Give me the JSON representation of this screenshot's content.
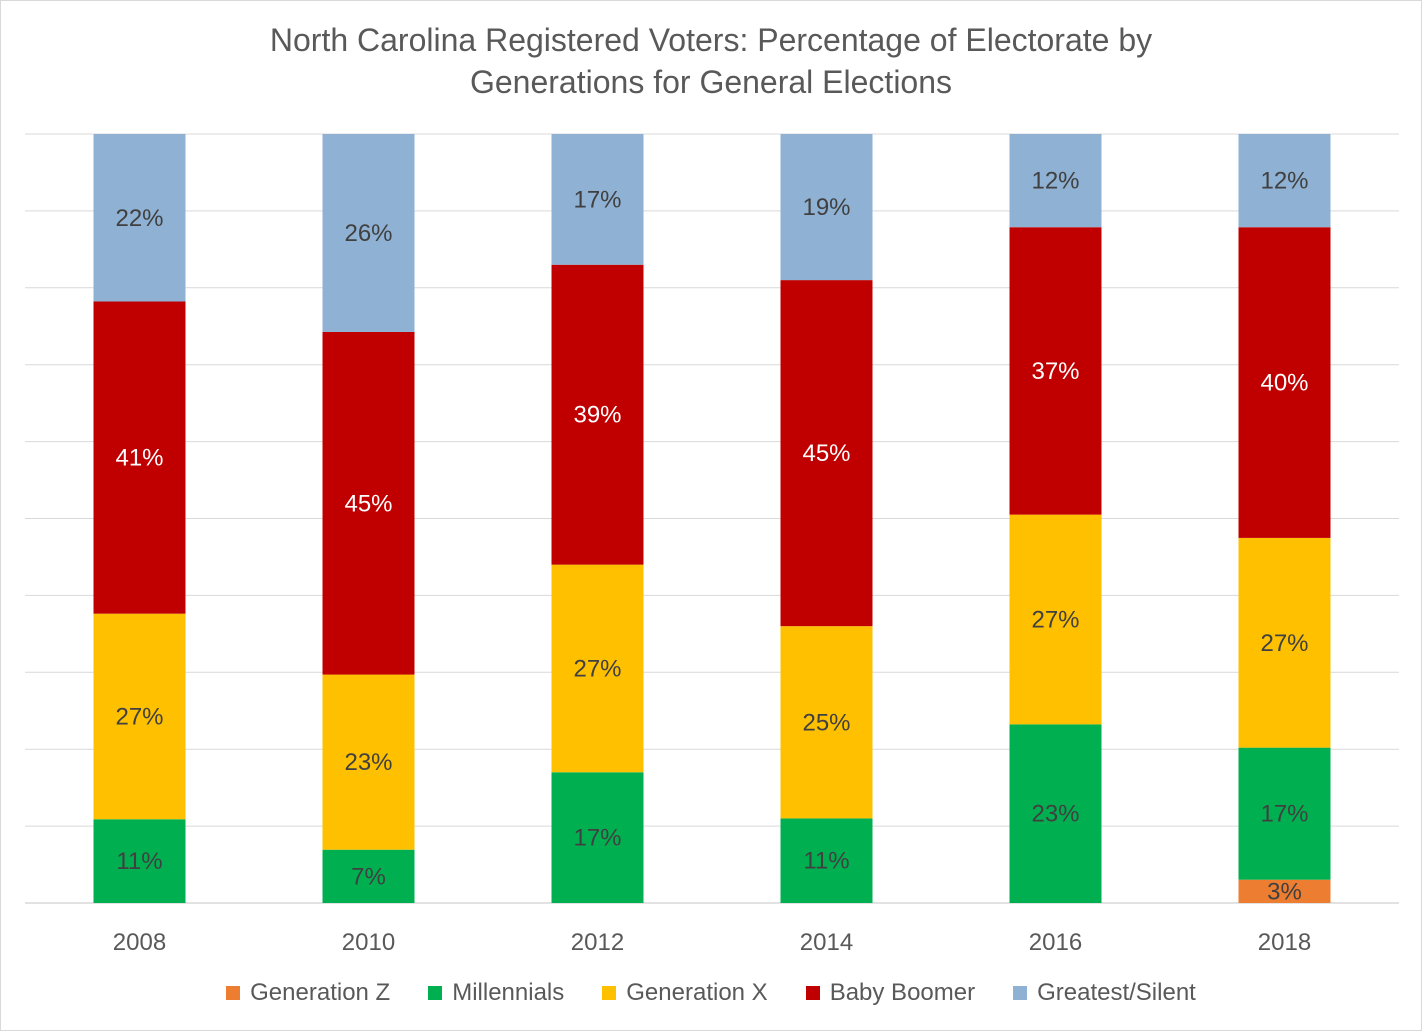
{
  "chart_data": {
    "type": "bar",
    "stacked": true,
    "percent_stacked": true,
    "title": "North Carolina Registered Voters: Percentage of Electorate by Generations for General Elections",
    "title_lines": [
      "North Carolina Registered Voters: Percentage of Electorate by",
      "Generations for General Elections"
    ],
    "xlabel": "",
    "ylabel": "",
    "ylim": [
      0,
      100
    ],
    "grid": true,
    "legend_position": "bottom",
    "categories": [
      "2008",
      "2010",
      "2012",
      "2014",
      "2016",
      "2018"
    ],
    "series": [
      {
        "name": "Generation Z",
        "color": "#ED7D31",
        "values": [
          null,
          null,
          null,
          null,
          null,
          3
        ],
        "labels": [
          "",
          "",
          "",
          "",
          "",
          "3%"
        ]
      },
      {
        "name": "Millennials",
        "color": "#00B050",
        "values": [
          11,
          7,
          17,
          11,
          23,
          17
        ],
        "labels": [
          "11%",
          "7%",
          "17%",
          "11%",
          "23%",
          "17%"
        ]
      },
      {
        "name": "Generation X",
        "color": "#FFC000",
        "values": [
          27,
          23,
          27,
          25,
          27,
          27
        ],
        "labels": [
          "27%",
          "23%",
          "27%",
          "25%",
          "27%",
          "27%"
        ]
      },
      {
        "name": "Baby Boomer",
        "color": "#C00000",
        "values": [
          41,
          45,
          39,
          45,
          37,
          40
        ],
        "labels": [
          "41%",
          "45%",
          "39%",
          "45%",
          "37%",
          "40%"
        ]
      },
      {
        "name": "Greatest/Silent",
        "color": "#8FB1D3",
        "values": [
          22,
          26,
          17,
          19,
          12,
          12
        ],
        "labels": [
          "22%",
          "26%",
          "17%",
          "19%",
          "12%",
          "12%"
        ]
      }
    ]
  },
  "colors": {
    "label_dark": "#404040",
    "label_light": "#ffffff",
    "gridline": "#d9d9d9",
    "axis_text": "#595959"
  }
}
